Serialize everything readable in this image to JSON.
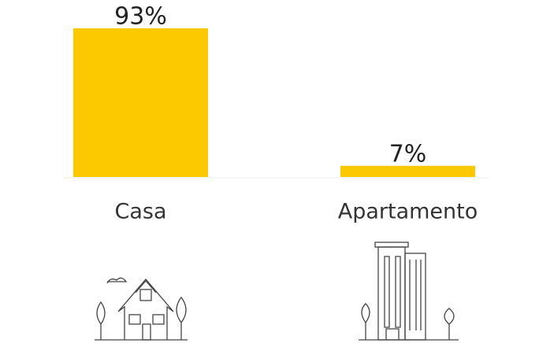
{
  "chart_data": {
    "type": "bar",
    "categories": [
      "Casa",
      "Apartamento"
    ],
    "values": [
      93,
      7
    ],
    "value_labels": [
      "93%",
      "7%"
    ],
    "color": "#fcc800"
  }
}
